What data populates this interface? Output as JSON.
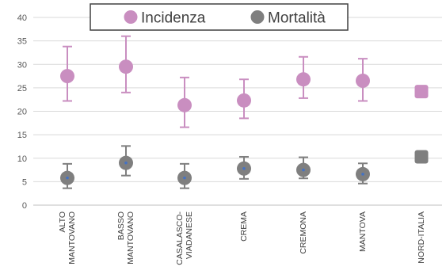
{
  "chart_data": {
    "type": "scatter",
    "title": "",
    "xlabel": "",
    "ylabel": "",
    "ylim": [
      0,
      40
    ],
    "yticks": [
      0,
      5,
      10,
      15,
      20,
      25,
      30,
      35,
      40
    ],
    "grid": true,
    "legend_position": "top",
    "categories": [
      [
        "ALTO",
        "MANTOVANO"
      ],
      [
        "BASSO",
        "MANTOVANO"
      ],
      [
        "CASALASCO-",
        "VIADANESE"
      ],
      [
        "CREMA"
      ],
      [
        "CREMONA"
      ],
      [
        "MANTOVA"
      ],
      [
        "NORD-ITALIA"
      ]
    ],
    "series": [
      {
        "name": "Incidenza",
        "color": "#c98ec0",
        "values": [
          27.5,
          29.5,
          21.3,
          22.3,
          26.8,
          26.5,
          24.2
        ],
        "lower": [
          22.2,
          24.0,
          16.6,
          18.5,
          22.8,
          22.2,
          null
        ],
        "upper": [
          33.8,
          36.0,
          27.2,
          26.8,
          31.6,
          31.2,
          null
        ]
      },
      {
        "name": "Mortalità",
        "color": "#7f7f7f",
        "values": [
          5.8,
          9.0,
          5.8,
          7.8,
          7.5,
          6.6,
          10.3
        ],
        "lower": [
          3.6,
          6.3,
          3.6,
          5.6,
          5.7,
          4.6,
          null
        ],
        "upper": [
          8.8,
          12.6,
          8.8,
          10.3,
          10.2,
          8.9,
          null
        ]
      }
    ]
  }
}
